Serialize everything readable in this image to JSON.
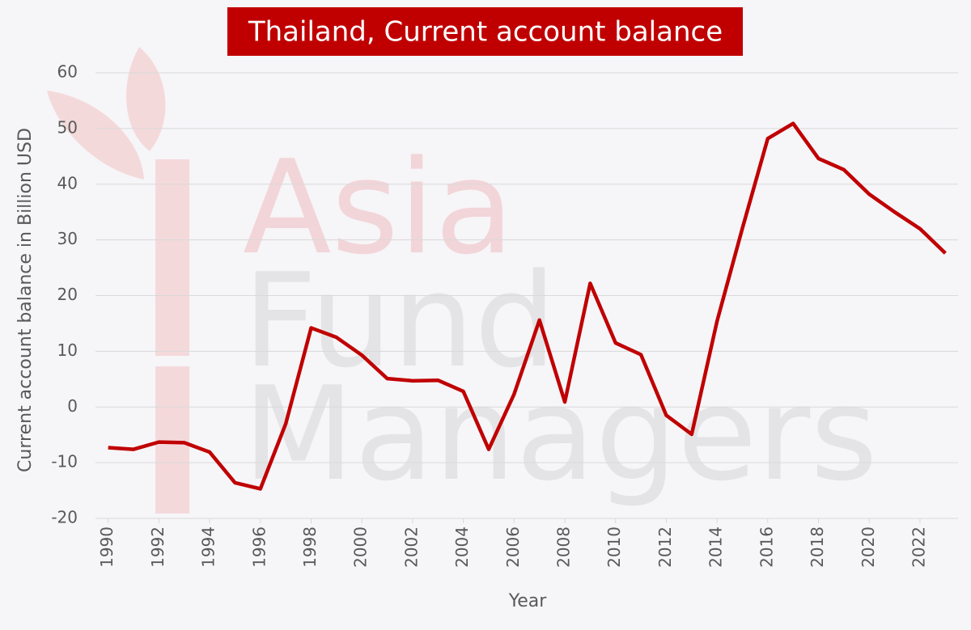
{
  "chart_data": {
    "type": "line",
    "title": "Thailand, Current account balance",
    "watermark": [
      "Asia",
      "Fund",
      "Managers"
    ],
    "x_label": "Year",
    "y_label": "Current account balance in Billion USD",
    "x": [
      1990,
      1991,
      1992,
      1993,
      1994,
      1995,
      1996,
      1997,
      1998,
      1999,
      2000,
      2001,
      2002,
      2003,
      2004,
      2005,
      2006,
      2007,
      2008,
      2009,
      2010,
      2011,
      2012,
      2013,
      2014,
      2015,
      2016,
      2017,
      2018,
      2019,
      2020,
      2021,
      2022,
      2023
    ],
    "series": [
      {
        "name": "Current account balance",
        "color": "#c00000",
        "values": [
          -7.3,
          -7.6,
          -6.3,
          -6.4,
          -8.1,
          -13.6,
          -14.7,
          -3.0,
          14.2,
          12.5,
          9.3,
          5.1,
          4.7,
          4.8,
          2.8,
          -7.6,
          2.3,
          15.6,
          0.9,
          22.2,
          11.5,
          9.4,
          -1.5,
          -4.9,
          15.4,
          32.1,
          48.2,
          50.9,
          44.6,
          42.6,
          38.2,
          35.0,
          32.0,
          27.6
        ]
      }
    ],
    "xlim": [
      1989.5,
      2023.5
    ],
    "xticks": [
      1990,
      1992,
      1994,
      1996,
      1998,
      2000,
      2002,
      2004,
      2006,
      2008,
      2010,
      2012,
      2014,
      2016,
      2018,
      2020,
      2022
    ],
    "ylim": [
      -20,
      60
    ],
    "yticks": [
      -20,
      -10,
      0,
      10,
      20,
      30,
      40,
      50,
      60
    ],
    "grid": true
  }
}
